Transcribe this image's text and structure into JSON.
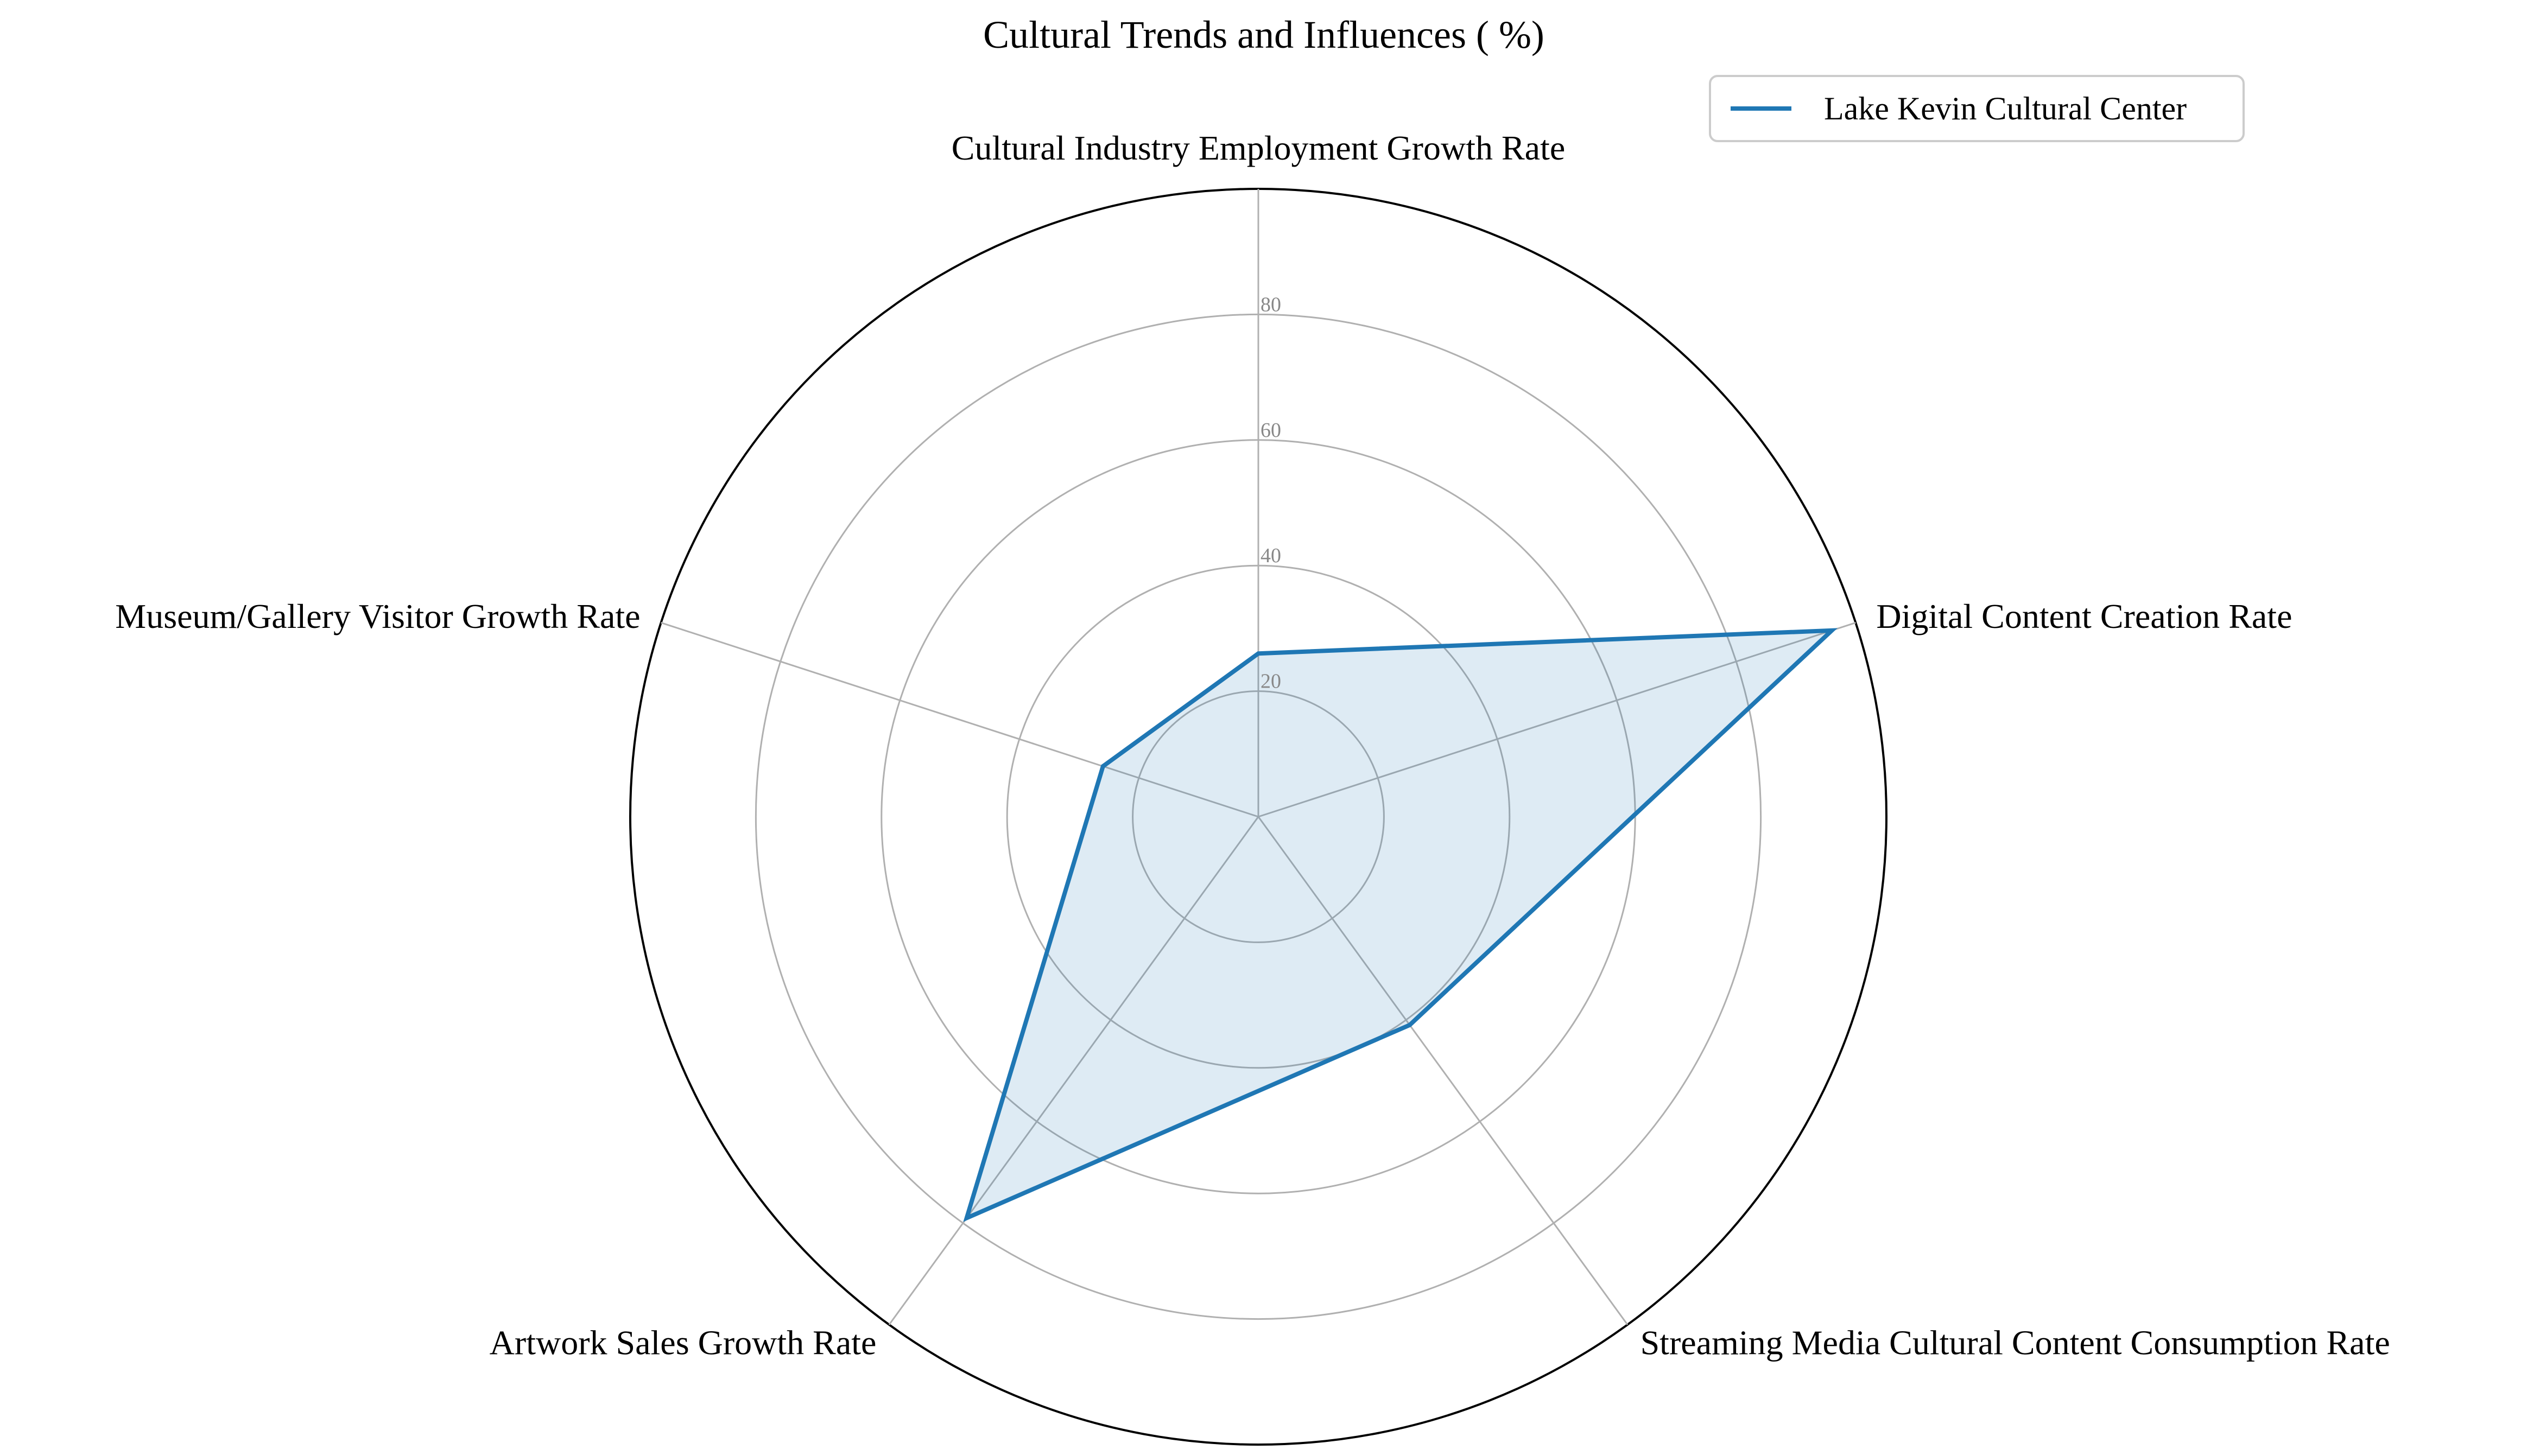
{
  "chart_data": {
    "type": "radar",
    "title": "Cultural Trends and Influences ( %)",
    "axes": [
      "Cultural Industry Employment Growth Rate",
      "Digital Content Creation Rate",
      "Streaming Media Cultural Content Consumption Rate",
      "Artwork Sales Growth Rate",
      "Museum/Gallery Visitor Growth Rate"
    ],
    "series": [
      {
        "name": "Lake Kevin Cultural Center",
        "values": [
          26,
          96,
          41,
          79,
          26
        ]
      }
    ],
    "radial_ticks": [
      20,
      40,
      60,
      80
    ],
    "rlim": [
      0,
      100
    ],
    "grid": true,
    "legend_position": "top-right",
    "colors": {
      "line": "#1f77b4",
      "fill": "#1f77b4",
      "grid": "#b0b0b0",
      "outer": "#000000"
    }
  }
}
